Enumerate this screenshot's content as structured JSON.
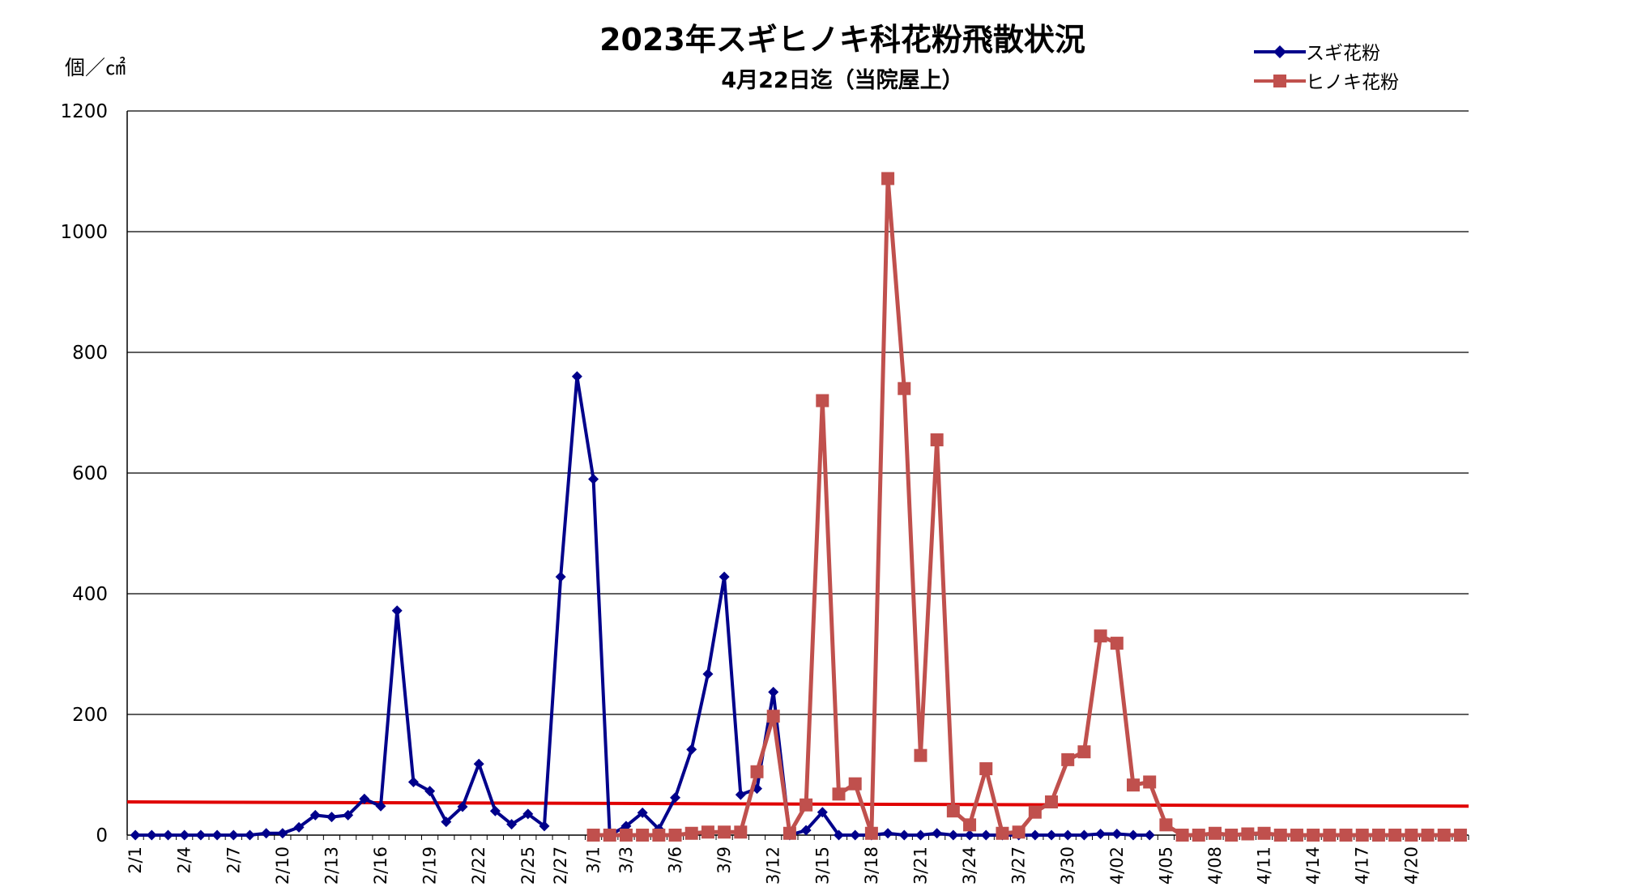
{
  "chart_data": {
    "type": "line",
    "title": "2023年スギヒノキ科花粉飛散状況",
    "subtitle": "4月22日迄（当院屋上）",
    "ylabel": "個／㎠",
    "ylim": [
      0,
      1200
    ],
    "yticks": [
      "0",
      "200",
      "400",
      "600",
      "800",
      "1000",
      "1200"
    ],
    "ytick_values": [
      0,
      200,
      400,
      600,
      800,
      1000,
      1200
    ],
    "grid": true,
    "legend_position": "top-right",
    "x_days": 82,
    "x_tick_labels": [
      {
        "day": 0,
        "label": "2/1"
      },
      {
        "day": 3,
        "label": "2/4"
      },
      {
        "day": 6,
        "label": "2/7"
      },
      {
        "day": 9,
        "label": "2/10"
      },
      {
        "day": 12,
        "label": "2/13"
      },
      {
        "day": 15,
        "label": "2/16"
      },
      {
        "day": 18,
        "label": "2/19"
      },
      {
        "day": 21,
        "label": "2/22"
      },
      {
        "day": 24,
        "label": "2/25"
      },
      {
        "day": 26,
        "label": "2/27"
      },
      {
        "day": 28,
        "label": "3/1"
      },
      {
        "day": 30,
        "label": "3/3"
      },
      {
        "day": 33,
        "label": "3/6"
      },
      {
        "day": 36,
        "label": "3/9"
      },
      {
        "day": 39,
        "label": "3/12"
      },
      {
        "day": 42,
        "label": "3/15"
      },
      {
        "day": 45,
        "label": "3/18"
      },
      {
        "day": 48,
        "label": "3/21"
      },
      {
        "day": 51,
        "label": "3/24"
      },
      {
        "day": 54,
        "label": "3/27"
      },
      {
        "day": 57,
        "label": "3/30"
      },
      {
        "day": 60,
        "label": "4/02"
      },
      {
        "day": 63,
        "label": "4/05"
      },
      {
        "day": 66,
        "label": "4/08"
      },
      {
        "day": 69,
        "label": "4/11"
      },
      {
        "day": 72,
        "label": "4/14"
      },
      {
        "day": 75,
        "label": "4/17"
      },
      {
        "day": 78,
        "label": "4/20"
      }
    ],
    "series": [
      {
        "name": "スギ花粉",
        "color": "#00008B",
        "marker": "diamond",
        "start_day": 0,
        "values": [
          0,
          0,
          0,
          0,
          0,
          0,
          0,
          0,
          3,
          3,
          13,
          33,
          30,
          33,
          60,
          48,
          372,
          88,
          73,
          22,
          47,
          118,
          40,
          18,
          35,
          15,
          428,
          760,
          590,
          0,
          15,
          37,
          10,
          62,
          142,
          267,
          428,
          67,
          77,
          237,
          0,
          8,
          38,
          0,
          0,
          0,
          3,
          0,
          0,
          3,
          0,
          0,
          0,
          0,
          0,
          0,
          0,
          0,
          0,
          2,
          2,
          0,
          0
        ]
      },
      {
        "name": "ヒノキ花粉",
        "color": "#C0504D",
        "marker": "square",
        "start_day": 28,
        "values": [
          0,
          0,
          0,
          0,
          0,
          0,
          3,
          5,
          5,
          5,
          105,
          197,
          3,
          50,
          720,
          68,
          85,
          3,
          1088,
          740,
          132,
          655,
          40,
          17,
          110,
          3,
          5,
          38,
          55,
          125,
          138,
          330,
          318,
          83,
          88,
          17,
          0,
          0,
          3,
          0,
          2,
          3,
          0,
          0,
          0,
          0,
          0,
          0,
          0,
          0,
          0,
          0,
          0,
          0
        ]
      }
    ],
    "reference_line": {
      "color": "#E00000",
      "start_value": 55,
      "end_value": 48
    }
  }
}
